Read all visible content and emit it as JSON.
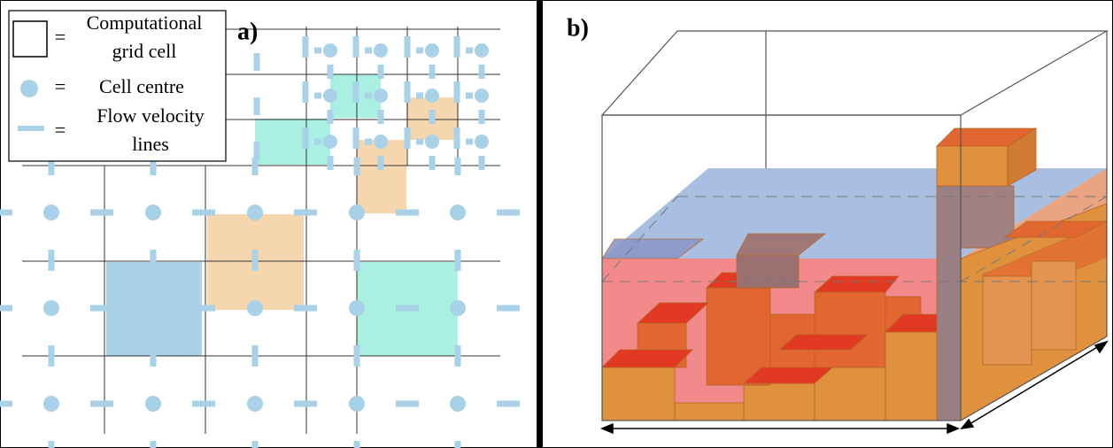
{
  "panel_a": {
    "label": "a)",
    "legend": [
      {
        "sign": "=",
        "lines": [
          "Computational",
          "grid cell"
        ]
      },
      {
        "sign": "=",
        "lines": [
          "Cell centre"
        ]
      },
      {
        "sign": "=",
        "lines": [
          "Flow velocity",
          "lines"
        ]
      }
    ]
  },
  "panel_b": {
    "label": "b)"
  }
}
